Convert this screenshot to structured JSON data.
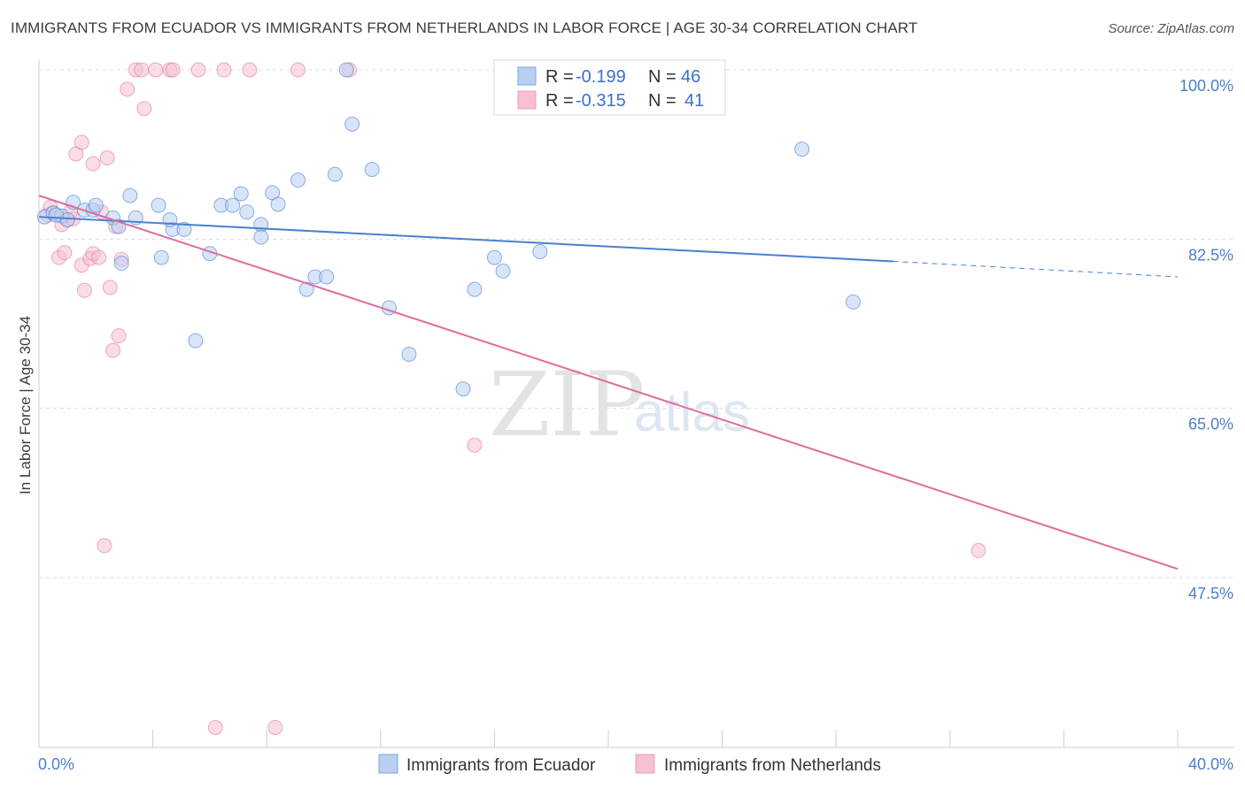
{
  "title": "IMMIGRANTS FROM ECUADOR VS IMMIGRANTS FROM NETHERLANDS IN LABOR FORCE | AGE 30-34 CORRELATION CHART",
  "source": "Source: ZipAtlas.com",
  "watermark": {
    "zip": "ZIP",
    "atlas": "atlas"
  },
  "legend_stats": [
    {
      "r_label": "R = ",
      "r_value": "-0.199",
      "n_label": "N = ",
      "n_value": "46"
    },
    {
      "r_label": "R = ",
      "r_value": "-0.315",
      "n_label": "N = ",
      "n_value": "41"
    }
  ],
  "bottom_legend": [
    "Immigrants from Ecuador",
    "Immigrants from Netherlands"
  ],
  "colors": {
    "ecuador": "#4a7fd0",
    "netherlands": "#e06c99",
    "ecuador_fill": "#b7cff0",
    "netherlands_fill": "#f6bfd2",
    "tick": "#4a7fd0"
  },
  "chart_data": {
    "type": "scatter",
    "title": "IMMIGRANTS FROM ECUADOR VS IMMIGRANTS FROM NETHERLANDS IN LABOR FORCE | AGE 30-34 CORRELATION CHART",
    "xlabel": "",
    "ylabel": "In Labor Force | Age 30-34",
    "xlim": [
      0,
      40
    ],
    "ylim": [
      30,
      100.5
    ],
    "x_tick_labels": [
      "0.0%",
      "40.0%"
    ],
    "y_ticks": [
      100.0,
      82.5,
      65.0,
      47.5
    ],
    "y_tick_labels": [
      "100.0%",
      "82.5%",
      "65.0%",
      "47.5%"
    ],
    "grid": true,
    "series": [
      {
        "name": "Immigrants from Ecuador",
        "r": -0.199,
        "n": 46,
        "trend": {
          "x0": 0,
          "y0": 84.8,
          "x1": 30,
          "y1": 80.2,
          "dash_x1": 40,
          "dash_y1": 78.6
        },
        "points": [
          [
            0.2,
            84.8
          ],
          [
            0.5,
            85.2
          ],
          [
            0.8,
            84.9
          ],
          [
            1.0,
            84.5
          ],
          [
            1.2,
            86.3
          ],
          [
            1.6,
            85.5
          ],
          [
            1.9,
            85.5
          ],
          [
            2.6,
            84.7
          ],
          [
            2.0,
            86.0
          ],
          [
            3.2,
            87.0
          ],
          [
            3.4,
            84.7
          ],
          [
            2.8,
            83.8
          ],
          [
            4.2,
            86.0
          ],
          [
            4.7,
            83.5
          ],
          [
            5.1,
            83.5
          ],
          [
            4.6,
            84.5
          ],
          [
            6.4,
            86.0
          ],
          [
            6.8,
            86.0
          ],
          [
            7.1,
            87.2
          ],
          [
            7.3,
            85.3
          ],
          [
            7.8,
            84.0
          ],
          [
            8.2,
            87.3
          ],
          [
            8.4,
            86.1
          ],
          [
            9.1,
            88.6
          ],
          [
            10.4,
            89.2
          ],
          [
            11.7,
            89.7
          ],
          [
            11.0,
            94.4
          ],
          [
            10.8,
            100.0
          ],
          [
            7.8,
            82.7
          ],
          [
            4.3,
            80.6
          ],
          [
            6.0,
            81.0
          ],
          [
            2.9,
            80.0
          ],
          [
            9.7,
            78.6
          ],
          [
            10.1,
            78.6
          ],
          [
            9.4,
            77.3
          ],
          [
            12.3,
            75.4
          ],
          [
            13.0,
            70.6
          ],
          [
            15.3,
            77.3
          ],
          [
            16.0,
            80.6
          ],
          [
            16.3,
            79.2
          ],
          [
            17.6,
            81.2
          ],
          [
            14.9,
            67.0
          ],
          [
            5.5,
            72.0
          ],
          [
            26.8,
            91.8
          ],
          [
            28.6,
            76.0
          ],
          [
            0.6,
            85.0
          ]
        ]
      },
      {
        "name": "Immigrants from Netherlands",
        "r": -0.315,
        "n": 41,
        "trend": {
          "x0": 0,
          "y0": 87.0,
          "x1": 40,
          "y1": 48.4
        },
        "points": [
          [
            0.3,
            85.0
          ],
          [
            0.4,
            85.8
          ],
          [
            0.5,
            85.2
          ],
          [
            1.0,
            84.5
          ],
          [
            0.8,
            84.0
          ],
          [
            1.2,
            84.6
          ],
          [
            1.3,
            91.3
          ],
          [
            1.5,
            92.5
          ],
          [
            1.9,
            90.3
          ],
          [
            2.4,
            90.9
          ],
          [
            2.2,
            85.3
          ],
          [
            2.7,
            83.8
          ],
          [
            3.1,
            98.0
          ],
          [
            3.7,
            96.0
          ],
          [
            3.4,
            100.0
          ],
          [
            3.6,
            100.0
          ],
          [
            4.1,
            100.0
          ],
          [
            4.6,
            100.0
          ],
          [
            4.7,
            100.0
          ],
          [
            5.6,
            100.0
          ],
          [
            6.5,
            100.0
          ],
          [
            7.4,
            100.0
          ],
          [
            9.1,
            100.0
          ],
          [
            10.9,
            100.0
          ],
          [
            0.7,
            80.6
          ],
          [
            0.9,
            81.1
          ],
          [
            1.5,
            79.8
          ],
          [
            1.8,
            80.5
          ],
          [
            1.9,
            81.0
          ],
          [
            2.1,
            80.6
          ],
          [
            2.9,
            80.4
          ],
          [
            1.6,
            77.2
          ],
          [
            2.5,
            77.5
          ],
          [
            2.8,
            72.5
          ],
          [
            2.6,
            71.0
          ],
          [
            15.3,
            61.2
          ],
          [
            2.3,
            50.8
          ],
          [
            6.2,
            32.0
          ],
          [
            8.3,
            32.0
          ],
          [
            33.0,
            50.3
          ],
          [
            1.1,
            85.3
          ]
        ]
      }
    ]
  }
}
